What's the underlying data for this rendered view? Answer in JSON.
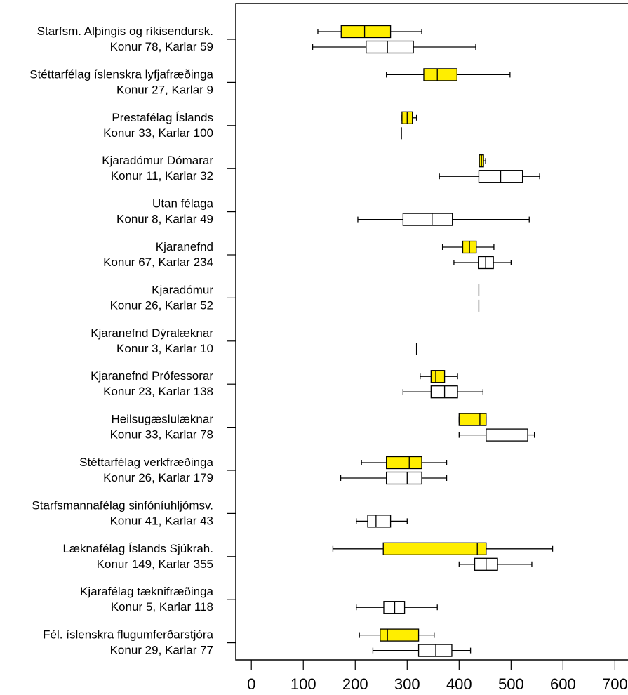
{
  "chart_data": {
    "type": "boxplot",
    "orientation": "horizontal",
    "xlim": [
      -30,
      740
    ],
    "xticks": [
      0,
      100,
      200,
      300,
      400,
      500,
      600,
      700
    ],
    "colors": {
      "women": "#ffee00",
      "men": "#ffffff",
      "outline": "#000000"
    },
    "categories": [
      {
        "label": [
          "Starfsm. Alþingis og ríkisendursk.",
          "Konur 78, Karlar 59"
        ],
        "women": {
          "whisker_low": 128,
          "q1": 173,
          "median": 218,
          "q3": 268,
          "whisker_high": 328
        },
        "men": {
          "whisker_low": 118,
          "q1": 221,
          "median": 262,
          "q3": 312,
          "whisker_high": 432
        }
      },
      {
        "label": [
          "Stéttarfélag íslenskra lyfjafræðinga",
          "Konur 27, Karlar 9"
        ],
        "women": {
          "whisker_low": 260,
          "q1": 332,
          "median": 358,
          "q3": 396,
          "whisker_high": 498
        },
        "men": null
      },
      {
        "label": [
          "Prestafélag Íslands",
          "Konur 33, Karlar 100"
        ],
        "women": {
          "whisker_low": 290,
          "q1": 290,
          "median": 300,
          "q3": 310,
          "whisker_high": 318
        },
        "men": {
          "whisker_low": 289,
          "q1": 289,
          "median": 289,
          "q3": 289,
          "whisker_high": 289
        }
      },
      {
        "label": [
          "Kjaradómur Dómarar",
          "Konur 11, Karlar 32"
        ],
        "women": {
          "whisker_low": 439,
          "q1": 439,
          "median": 443,
          "q3": 447,
          "whisker_high": 451
        },
        "men": {
          "whisker_low": 362,
          "q1": 438,
          "median": 480,
          "q3": 522,
          "whisker_high": 555
        }
      },
      {
        "label": [
          "Utan félaga",
          "Konur 8, Karlar 49"
        ],
        "women": null,
        "men": {
          "whisker_low": 205,
          "q1": 292,
          "median": 348,
          "q3": 387,
          "whisker_high": 535
        }
      },
      {
        "label": [
          "Kjaranefnd",
          "Konur 67, Karlar 234"
        ],
        "women": {
          "whisker_low": 368,
          "q1": 407,
          "median": 420,
          "q3": 433,
          "whisker_high": 467
        },
        "men": {
          "whisker_low": 390,
          "q1": 437,
          "median": 451,
          "q3": 466,
          "whisker_high": 500
        }
      },
      {
        "label": [
          "Kjaradómur",
          "Konur 26, Karlar 52"
        ],
        "women": {
          "whisker_low": 438,
          "q1": 438,
          "median": 438,
          "q3": 438,
          "whisker_high": 438
        },
        "men": {
          "whisker_low": 438,
          "q1": 438,
          "median": 438,
          "q3": 438,
          "whisker_high": 438
        }
      },
      {
        "label": [
          "Kjaranefnd Dýralæknar",
          "Konur 3, Karlar 10"
        ],
        "women": null,
        "men": {
          "whisker_low": 318,
          "q1": 318,
          "median": 318,
          "q3": 318,
          "whisker_high": 318
        }
      },
      {
        "label": [
          "Kjaranefnd Prófessorar",
          "Konur 23, Karlar 138"
        ],
        "women": {
          "whisker_low": 325,
          "q1": 346,
          "median": 355,
          "q3": 372,
          "whisker_high": 397
        },
        "men": {
          "whisker_low": 292,
          "q1": 346,
          "median": 372,
          "q3": 397,
          "whisker_high": 446
        }
      },
      {
        "label": [
          "Heilsugæslulæknar",
          "Konur 33, Karlar 78"
        ],
        "women": {
          "whisker_low": 400,
          "q1": 400,
          "median": 440,
          "q3": 452,
          "whisker_high": 452
        },
        "men": {
          "whisker_low": 400,
          "q1": 452,
          "median": 452,
          "q3": 532,
          "whisker_high": 545
        }
      },
      {
        "label": [
          "Stéttarfélag verkfræðinga",
          "Konur 26, Karlar 179"
        ],
        "women": {
          "whisker_low": 212,
          "q1": 260,
          "median": 304,
          "q3": 328,
          "whisker_high": 376
        },
        "men": {
          "whisker_low": 172,
          "q1": 260,
          "median": 300,
          "q3": 328,
          "whisker_high": 376
        }
      },
      {
        "label": [
          "Starfsmannafélag sinfóníuhljómsv.",
          "Konur 41, Karlar 43"
        ],
        "women": null,
        "men": {
          "whisker_low": 202,
          "q1": 224,
          "median": 240,
          "q3": 268,
          "whisker_high": 300
        }
      },
      {
        "label": [
          "Læknafélag Íslands Sjúkrah.",
          "Konur 149, Karlar 355"
        ],
        "women": {
          "whisker_low": 157,
          "q1": 254,
          "median": 435,
          "q3": 452,
          "whisker_high": 580
        },
        "men": {
          "whisker_low": 400,
          "q1": 430,
          "median": 452,
          "q3": 474,
          "whisker_high": 540
        }
      },
      {
        "label": [
          "Kjarafélag tæknifræðinga",
          "Konur 5, Karlar 118"
        ],
        "women": null,
        "men": {
          "whisker_low": 202,
          "q1": 255,
          "median": 276,
          "q3": 295,
          "whisker_high": 358
        }
      },
      {
        "label": [
          "Fél. íslenskra flugumferðarstjóra",
          "Konur 29, Karlar 77"
        ],
        "women": {
          "whisker_low": 208,
          "q1": 248,
          "median": 262,
          "q3": 322,
          "whisker_high": 352
        },
        "men": {
          "whisker_low": 234,
          "q1": 322,
          "median": 355,
          "q3": 386,
          "whisker_high": 422
        }
      }
    ]
  }
}
